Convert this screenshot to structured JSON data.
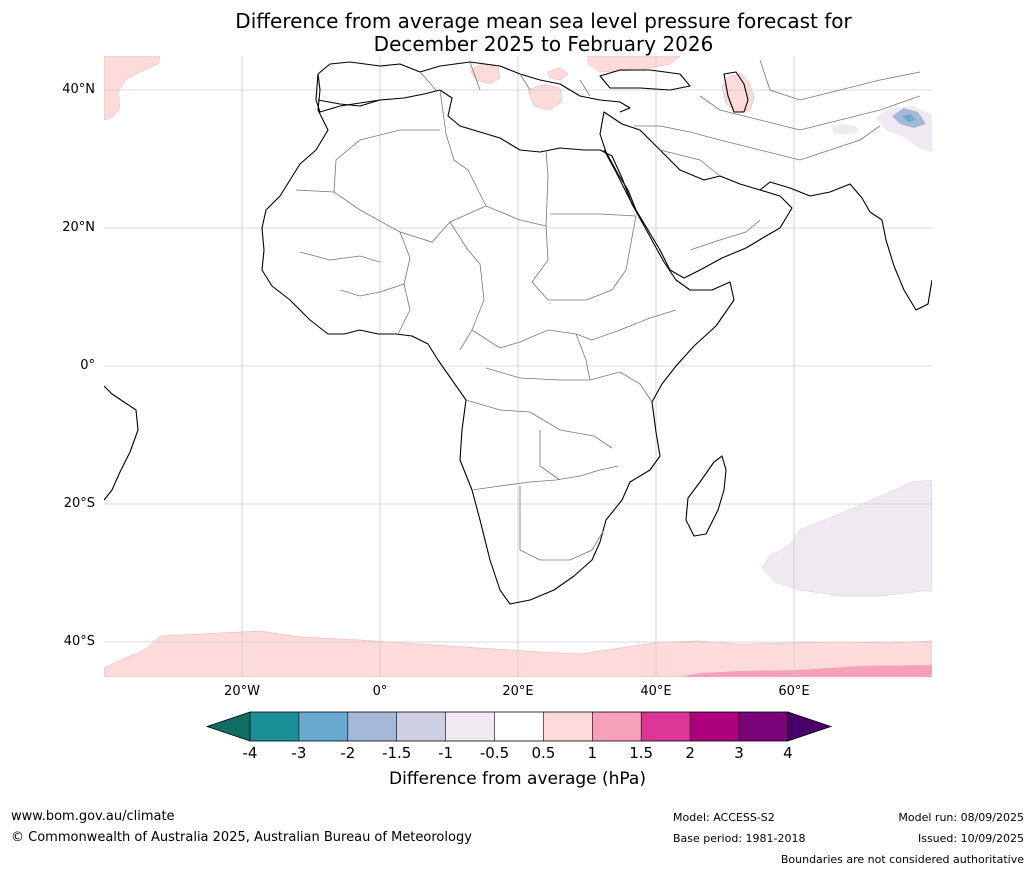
{
  "title_line1": "Difference from average mean sea level pressure forecast for",
  "title_line2": "December 2025 to February 2026",
  "lat_labels": [
    "40°N",
    "20°N",
    "0°",
    "20°S",
    "40°S"
  ],
  "lon_labels": [
    "20°W",
    "0°",
    "20°E",
    "40°E",
    "60°E"
  ],
  "colorbar": {
    "ticks": [
      "-4",
      "-3",
      "-2",
      "-1.5",
      "-1",
      "-0.5",
      "0.5",
      "1",
      "1.5",
      "2",
      "3",
      "4"
    ],
    "colors": [
      "#1a8f96",
      "#67a9cf",
      "#a6b8d8",
      "#cfcfe3",
      "#efe9f1",
      "#ffffff",
      "#fddbdb",
      "#f7a1b9",
      "#dd3497",
      "#ae017e",
      "#7a0177"
    ],
    "under_color": "#0f6e62",
    "over_color": "#49006a",
    "label": "Difference from average (hPa)"
  },
  "footer": {
    "url": "www.bom.gov.au/climate",
    "copyright": "© Commonwealth of Australia 2025, Australian Bureau of Meteorology",
    "model": "Model: ACCESS-S2",
    "base_period": "Base period: 1981-2018",
    "model_run": "Model run: 08/09/2025",
    "issued": "Issued: 10/09/2025",
    "disclaimer": "Boundaries are not considered authoritative"
  }
}
